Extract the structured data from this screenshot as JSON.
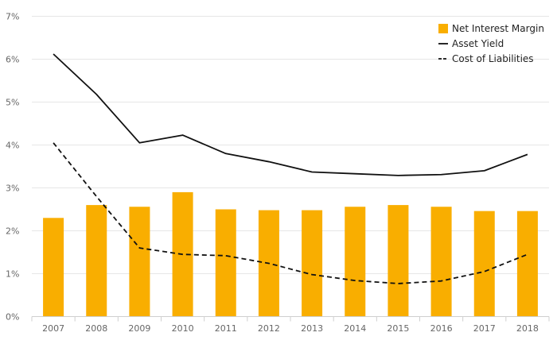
{
  "chart_data": {
    "type": "bar",
    "categories": [
      "2007",
      "2008",
      "2009",
      "2010",
      "2011",
      "2012",
      "2013",
      "2014",
      "2015",
      "2016",
      "2017",
      "2018"
    ],
    "ylim": [
      0,
      7
    ],
    "yticks": [
      "0%",
      "1%",
      "2%",
      "3%",
      "4%",
      "5%",
      "6%",
      "7%"
    ],
    "grid": true,
    "legend_position": "top-right",
    "series": [
      {
        "name": "Net Interest Margin",
        "kind": "bar",
        "color": "#F9AE00",
        "values": [
          2.3,
          2.6,
          2.56,
          2.9,
          2.5,
          2.48,
          2.48,
          2.56,
          2.6,
          2.56,
          2.46,
          2.46
        ]
      },
      {
        "name": "Asset Yield",
        "kind": "line",
        "style": "solid",
        "color": "#111111",
        "values": [
          6.12,
          5.18,
          4.05,
          4.23,
          3.8,
          3.61,
          3.37,
          3.33,
          3.29,
          3.31,
          3.4,
          3.78
        ]
      },
      {
        "name": "Cost of Liabilities",
        "kind": "line",
        "style": "dashed",
        "color": "#111111",
        "values": [
          4.05,
          2.8,
          1.6,
          1.45,
          1.42,
          1.24,
          0.98,
          0.84,
          0.77,
          0.83,
          1.05,
          1.45
        ]
      }
    ]
  }
}
